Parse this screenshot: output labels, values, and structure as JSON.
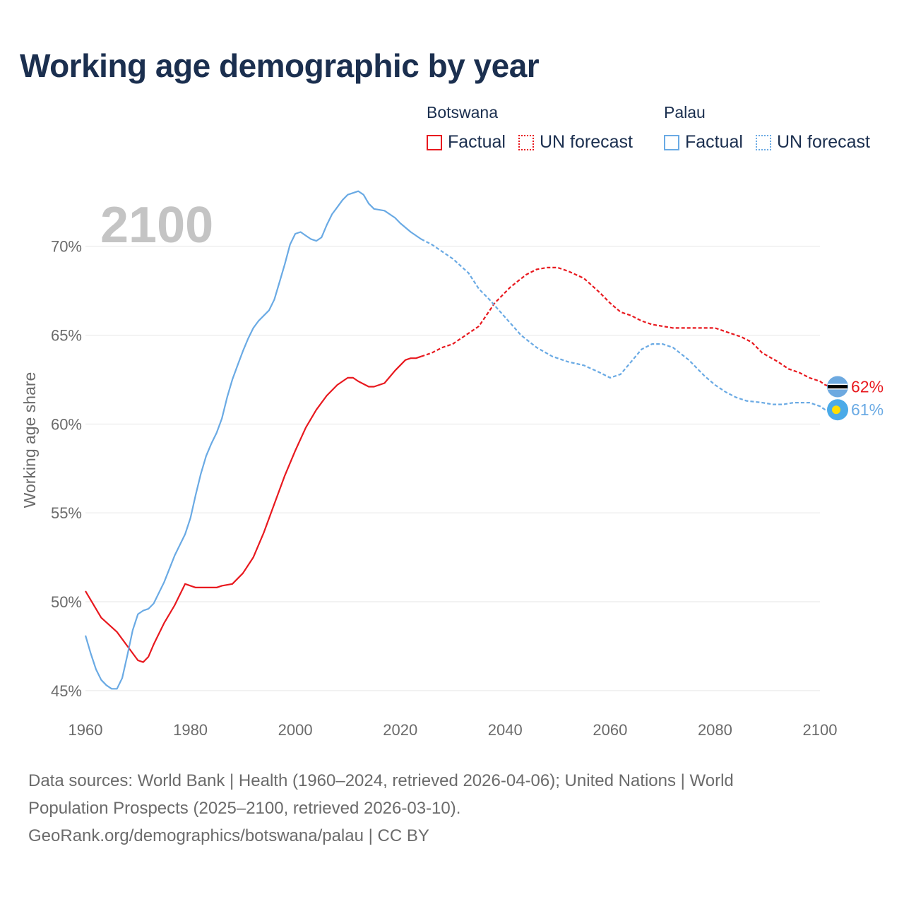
{
  "title": "Working age demographic by year",
  "legend": [
    {
      "country": "Botswana",
      "color": "#e8191f",
      "factual_label": "Factual",
      "forecast_label": "UN forecast"
    },
    {
      "country": "Palau",
      "color": "#6aaae4",
      "factual_label": "Factual",
      "forecast_label": "UN forecast"
    }
  ],
  "footer": {
    "sources": "Data sources: World Bank | Health (1960–2024, retrieved 2026-04-06); United Nations | World Population Prospects (2025–2100, retrieved 2026-03-10).",
    "credit": "GeoRank.org/demographics/botswana/palau | CC BY"
  },
  "chart_data": {
    "type": "line",
    "title": "Working age demographic by year",
    "year_watermark": "2100",
    "xlabel": "",
    "ylabel": "Working age share",
    "xlim": [
      1960,
      2100
    ],
    "ylim": [
      44,
      74
    ],
    "x_ticks": [
      1960,
      1980,
      2000,
      2020,
      2040,
      2060,
      2080,
      2100
    ],
    "y_ticks": [
      45,
      50,
      55,
      60,
      65,
      70
    ],
    "y_tick_labels": [
      "45%",
      "50%",
      "55%",
      "60%",
      "65%",
      "70%"
    ],
    "grid": true,
    "forecast_start_year": 2024,
    "series": [
      {
        "name": "Botswana",
        "color": "#e8191f",
        "end_label": "62%",
        "flag": "botswana-flag",
        "points": [
          [
            1960,
            50.6
          ],
          [
            1963,
            49.1
          ],
          [
            1966,
            48.3
          ],
          [
            1968,
            47.5
          ],
          [
            1970,
            46.7
          ],
          [
            1971,
            46.6
          ],
          [
            1972,
            46.9
          ],
          [
            1973,
            47.6
          ],
          [
            1975,
            48.8
          ],
          [
            1977,
            49.8
          ],
          [
            1979,
            51.0
          ],
          [
            1981,
            50.8
          ],
          [
            1983,
            50.8
          ],
          [
            1985,
            50.8
          ],
          [
            1986,
            50.9
          ],
          [
            1988,
            51.0
          ],
          [
            1990,
            51.6
          ],
          [
            1992,
            52.5
          ],
          [
            1994,
            53.9
          ],
          [
            1996,
            55.5
          ],
          [
            1998,
            57.1
          ],
          [
            2000,
            58.5
          ],
          [
            2002,
            59.8
          ],
          [
            2004,
            60.8
          ],
          [
            2006,
            61.6
          ],
          [
            2008,
            62.2
          ],
          [
            2010,
            62.6
          ],
          [
            2011,
            62.6
          ],
          [
            2012,
            62.4
          ],
          [
            2014,
            62.1
          ],
          [
            2015,
            62.1
          ],
          [
            2017,
            62.3
          ],
          [
            2019,
            63.0
          ],
          [
            2021,
            63.6
          ],
          [
            2022,
            63.7
          ],
          [
            2023,
            63.7
          ],
          [
            2024,
            63.8
          ],
          [
            2026,
            64.0
          ],
          [
            2028,
            64.3
          ],
          [
            2030,
            64.5
          ],
          [
            2032,
            64.9
          ],
          [
            2035,
            65.5
          ],
          [
            2038,
            66.8
          ],
          [
            2041,
            67.7
          ],
          [
            2044,
            68.4
          ],
          [
            2046,
            68.7
          ],
          [
            2048,
            68.8
          ],
          [
            2050,
            68.8
          ],
          [
            2052,
            68.6
          ],
          [
            2055,
            68.2
          ],
          [
            2058,
            67.4
          ],
          [
            2060,
            66.8
          ],
          [
            2062,
            66.3
          ],
          [
            2064,
            66.1
          ],
          [
            2066,
            65.8
          ],
          [
            2068,
            65.6
          ],
          [
            2070,
            65.5
          ],
          [
            2072,
            65.4
          ],
          [
            2075,
            65.4
          ],
          [
            2080,
            65.4
          ],
          [
            2083,
            65.1
          ],
          [
            2085,
            64.9
          ],
          [
            2087,
            64.6
          ],
          [
            2089,
            64.0
          ],
          [
            2092,
            63.5
          ],
          [
            2094,
            63.1
          ],
          [
            2096,
            62.9
          ],
          [
            2098,
            62.6
          ],
          [
            2100,
            62.4
          ],
          [
            2101,
            62.2
          ],
          [
            2102,
            62.1
          ]
        ]
      },
      {
        "name": "Palau",
        "color": "#6aaae4",
        "end_label": "61%",
        "flag": "palau-flag",
        "points": [
          [
            1960,
            48.1
          ],
          [
            1961,
            47.1
          ],
          [
            1962,
            46.2
          ],
          [
            1963,
            45.6
          ],
          [
            1964,
            45.3
          ],
          [
            1965,
            45.1
          ],
          [
            1966,
            45.1
          ],
          [
            1967,
            45.7
          ],
          [
            1968,
            47.0
          ],
          [
            1969,
            48.4
          ],
          [
            1970,
            49.3
          ],
          [
            1971,
            49.5
          ],
          [
            1972,
            49.6
          ],
          [
            1973,
            49.9
          ],
          [
            1975,
            51.1
          ],
          [
            1977,
            52.6
          ],
          [
            1979,
            53.8
          ],
          [
            1980,
            54.7
          ],
          [
            1981,
            56.0
          ],
          [
            1982,
            57.2
          ],
          [
            1983,
            58.2
          ],
          [
            1984,
            58.9
          ],
          [
            1985,
            59.5
          ],
          [
            1986,
            60.3
          ],
          [
            1987,
            61.5
          ],
          [
            1988,
            62.5
          ],
          [
            1989,
            63.3
          ],
          [
            1990,
            64.1
          ],
          [
            1991,
            64.8
          ],
          [
            1992,
            65.4
          ],
          [
            1993,
            65.8
          ],
          [
            1995,
            66.4
          ],
          [
            1996,
            67.0
          ],
          [
            1997,
            68.0
          ],
          [
            1998,
            69.0
          ],
          [
            1999,
            70.1
          ],
          [
            2000,
            70.7
          ],
          [
            2001,
            70.8
          ],
          [
            2002,
            70.6
          ],
          [
            2003,
            70.4
          ],
          [
            2004,
            70.3
          ],
          [
            2005,
            70.5
          ],
          [
            2006,
            71.2
          ],
          [
            2007,
            71.8
          ],
          [
            2008,
            72.2
          ],
          [
            2009,
            72.6
          ],
          [
            2010,
            72.9
          ],
          [
            2011,
            73.0
          ],
          [
            2012,
            73.1
          ],
          [
            2013,
            72.9
          ],
          [
            2014,
            72.4
          ],
          [
            2015,
            72.1
          ],
          [
            2017,
            72.0
          ],
          [
            2019,
            71.6
          ],
          [
            2020,
            71.3
          ],
          [
            2022,
            70.8
          ],
          [
            2024,
            70.4
          ],
          [
            2026,
            70.1
          ],
          [
            2028,
            69.7
          ],
          [
            2030,
            69.3
          ],
          [
            2033,
            68.5
          ],
          [
            2035,
            67.6
          ],
          [
            2037,
            67.0
          ],
          [
            2040,
            66.0
          ],
          [
            2043,
            65.0
          ],
          [
            2046,
            64.3
          ],
          [
            2049,
            63.8
          ],
          [
            2052,
            63.5
          ],
          [
            2055,
            63.3
          ],
          [
            2058,
            62.9
          ],
          [
            2060,
            62.6
          ],
          [
            2062,
            62.8
          ],
          [
            2064,
            63.5
          ],
          [
            2066,
            64.2
          ],
          [
            2068,
            64.5
          ],
          [
            2070,
            64.5
          ],
          [
            2072,
            64.3
          ],
          [
            2075,
            63.6
          ],
          [
            2078,
            62.7
          ],
          [
            2080,
            62.2
          ],
          [
            2082,
            61.8
          ],
          [
            2084,
            61.5
          ],
          [
            2086,
            61.3
          ],
          [
            2089,
            61.2
          ],
          [
            2091,
            61.1
          ],
          [
            2093,
            61.1
          ],
          [
            2095,
            61.2
          ],
          [
            2098,
            61.2
          ],
          [
            2100,
            61.0
          ],
          [
            2101,
            60.8
          ],
          [
            2102,
            60.8
          ]
        ]
      }
    ]
  }
}
